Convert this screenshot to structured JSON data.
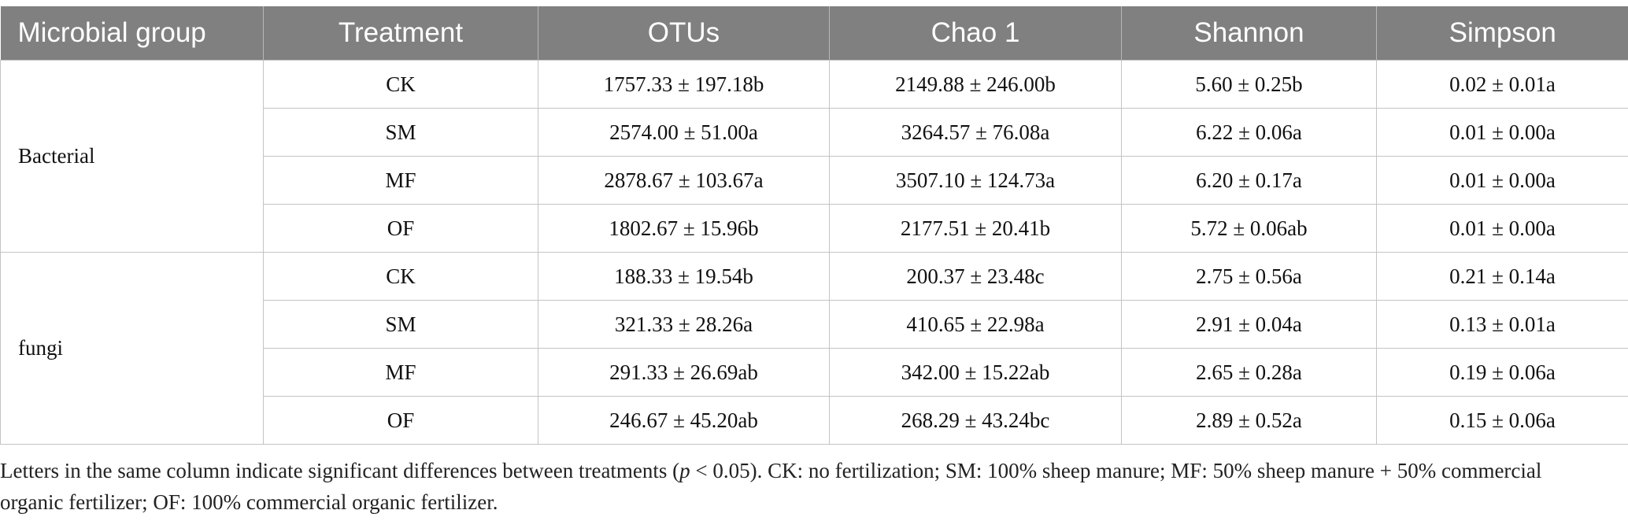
{
  "headers": [
    "Microbial group",
    "Treatment",
    "OTUs",
    "Chao 1",
    "Shannon",
    "Simpson"
  ],
  "groups": [
    {
      "name": "Bacterial",
      "rows": [
        {
          "treatment": "CK",
          "otus": "1757.33 ± 197.18b",
          "chao1": "2149.88 ± 246.00b",
          "shannon": "5.60 ± 0.25b",
          "simpson": "0.02 ± 0.01a"
        },
        {
          "treatment": "SM",
          "otus": "2574.00 ± 51.00a",
          "chao1": "3264.57 ± 76.08a",
          "shannon": "6.22 ± 0.06a",
          "simpson": "0.01 ± 0.00a"
        },
        {
          "treatment": "MF",
          "otus": "2878.67 ± 103.67a",
          "chao1": "3507.10 ± 124.73a",
          "shannon": "6.20 ± 0.17a",
          "simpson": "0.01 ± 0.00a"
        },
        {
          "treatment": "OF",
          "otus": "1802.67 ± 15.96b",
          "chao1": "2177.51 ± 20.41b",
          "shannon": "5.72 ± 0.06ab",
          "simpson": "0.01 ± 0.00a"
        }
      ]
    },
    {
      "name": "fungi",
      "rows": [
        {
          "treatment": "CK",
          "otus": "188.33 ± 19.54b",
          "chao1": "200.37 ± 23.48c",
          "shannon": "2.75 ± 0.56a",
          "simpson": "0.21 ± 0.14a"
        },
        {
          "treatment": "SM",
          "otus": "321.33 ± 28.26a",
          "chao1": "410.65 ± 22.98a",
          "shannon": "2.91 ± 0.04a",
          "simpson": "0.13 ± 0.01a"
        },
        {
          "treatment": "MF",
          "otus": "291.33 ± 26.69ab",
          "chao1": "342.00 ± 15.22ab",
          "shannon": "2.65 ± 0.28a",
          "simpson": "0.19 ± 0.06a"
        },
        {
          "treatment": "OF",
          "otus": "246.67 ± 45.20ab",
          "chao1": "268.29 ± 43.24bc",
          "shannon": "2.89 ± 0.52a",
          "simpson": "0.15 ± 0.06a"
        }
      ]
    }
  ],
  "footnote": {
    "part1": "Letters in the same column indicate significant differences between treatments (",
    "p_symbol": "p",
    "part2": " < 0.05). CK: no fertilization; SM: 100% sheep manure; MF: 50% sheep manure + 50% commercial organic fertilizer; OF: 100% commercial organic fertilizer."
  }
}
